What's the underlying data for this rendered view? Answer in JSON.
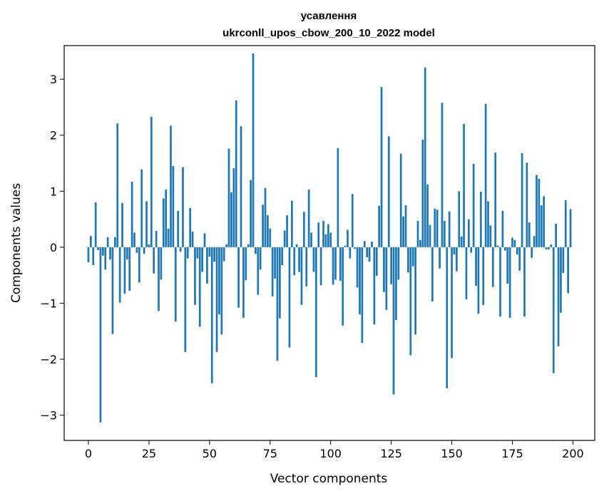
{
  "chart_data": {
    "type": "bar",
    "title": [
      "усавлення",
      "ukrconll_upos_cbow_200_10_2022 model"
    ],
    "xlabel": "Vector components",
    "ylabel": "Components values",
    "xlim": [
      -10,
      209
    ],
    "ylim": [
      -3.45,
      3.6
    ],
    "xticks": [
      0,
      25,
      50,
      75,
      100,
      125,
      150,
      175,
      200
    ],
    "xtick_labels": [
      "0",
      "25",
      "50",
      "75",
      "100",
      "125",
      "150",
      "175",
      "200"
    ],
    "yticks": [
      -3,
      -2,
      -1,
      0,
      1,
      2,
      3
    ],
    "ytick_labels": [
      "−3",
      "−2",
      "−1",
      "0",
      "1",
      "2",
      "3"
    ],
    "grid": false,
    "bar_color": "#1f77b4",
    "values": [
      -0.27,
      0.2,
      -0.32,
      0.8,
      -0.05,
      -3.13,
      -0.15,
      -0.4,
      0.18,
      -0.22,
      -1.55,
      0.18,
      2.21,
      -0.99,
      0.79,
      -0.83,
      -0.22,
      -0.78,
      1.17,
      0.26,
      -0.1,
      -0.63,
      1.39,
      -0.12,
      0.82,
      0.05,
      2.33,
      -0.47,
      0.29,
      -1.14,
      -0.58,
      0.87,
      1.03,
      0.33,
      2.17,
      1.45,
      -1.33,
      0.65,
      -0.08,
      1.43,
      -1.87,
      -0.2,
      0.7,
      0.28,
      -1.03,
      -0.2,
      -1.42,
      -0.44,
      0.25,
      -0.65,
      -0.17,
      -2.43,
      -0.26,
      -1.87,
      -1.2,
      -1.56,
      -0.25,
      0.05,
      1.76,
      0.98,
      1.41,
      2.62,
      -1.08,
      2.16,
      -1.26,
      -0.59,
      0.05,
      1.2,
      3.46,
      -0.12,
      -0.85,
      -0.4,
      0.76,
      1.06,
      0.57,
      0.33,
      -0.88,
      -0.56,
      -2.03,
      -1.27,
      -0.32,
      0.3,
      0.57,
      -1.79,
      0.83,
      -0.5,
      0.05,
      -0.44,
      -1.03,
      0.63,
      -0.7,
      1.03,
      0.26,
      -0.44,
      -2.32,
      0.44,
      -0.68,
      0.47,
      0.23,
      0.41,
      0.26,
      -0.67,
      -0.58,
      1.77,
      -0.6,
      -1.4,
      0.03,
      0.31,
      -0.2,
      0.95,
      -0.03,
      -0.72,
      -1.2,
      -1.71,
      0.11,
      -0.18,
      -0.26,
      0.1,
      -1.38,
      -0.51,
      0.74,
      2.86,
      -0.8,
      -1.12,
      1.98,
      -0.66,
      -2.63,
      -1.3,
      -0.58,
      1.67,
      0.55,
      0.75,
      -0.45,
      -1.93,
      -0.34,
      -1.56,
      0.47,
      0.13,
      1.92,
      3.21,
      1.12,
      0.4,
      -0.97,
      0.69,
      0.67,
      -0.38,
      2.58,
      0.47,
      -2.52,
      0.64,
      -1.98,
      -0.13,
      -0.43,
      1.0,
      0.19,
      2.2,
      -0.93,
      0.5,
      -0.1,
      1.49,
      -0.69,
      -1.19,
      0.99,
      -1.03,
      2.56,
      0.82,
      0.39,
      -0.71,
      1.69,
      0.03,
      -1.24,
      0.65,
      -0.06,
      -0.65,
      -1.26,
      0.17,
      0.13,
      -0.13,
      -0.42,
      1.68,
      -1.24,
      1.51,
      0.44,
      -0.19,
      0.2,
      1.29,
      1.22,
      0.75,
      0.91,
      -0.04,
      -0.04,
      0.05,
      -2.25,
      0.42,
      -1.77,
      -1.17,
      -0.46,
      0.84,
      -0.82,
      0.68
    ]
  }
}
